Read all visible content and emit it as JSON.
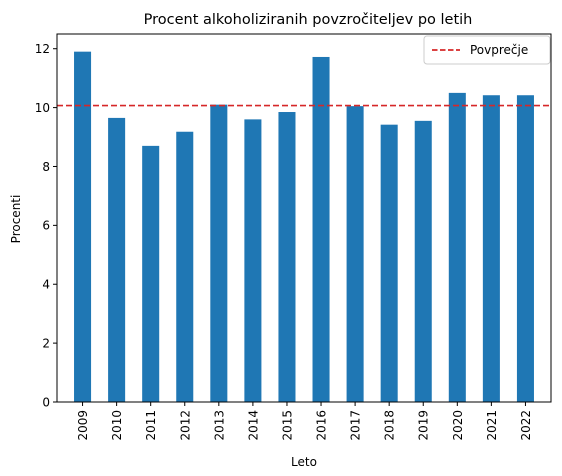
{
  "chart_data": {
    "type": "bar",
    "title": "Procent alkoholiziranih povzročiteljev po letih",
    "xlabel": "Leto",
    "ylabel": "Procenti",
    "categories": [
      "2009",
      "2010",
      "2011",
      "2012",
      "2013",
      "2014",
      "2015",
      "2016",
      "2017",
      "2018",
      "2019",
      "2020",
      "2021",
      "2022"
    ],
    "values": [
      11.9,
      9.65,
      8.7,
      9.18,
      10.1,
      9.6,
      9.85,
      11.72,
      10.05,
      9.42,
      9.55,
      10.5,
      10.42,
      10.42
    ],
    "yticks": [
      0,
      2,
      4,
      6,
      8,
      10,
      12
    ],
    "ylim": [
      0,
      12.5
    ],
    "bar_color": "#1f77b4",
    "mean_line": {
      "label": "Povprečje",
      "value": 10.07,
      "color": "#d62728",
      "style": "dashed"
    },
    "legend_position": "top-right",
    "grid": false
  }
}
